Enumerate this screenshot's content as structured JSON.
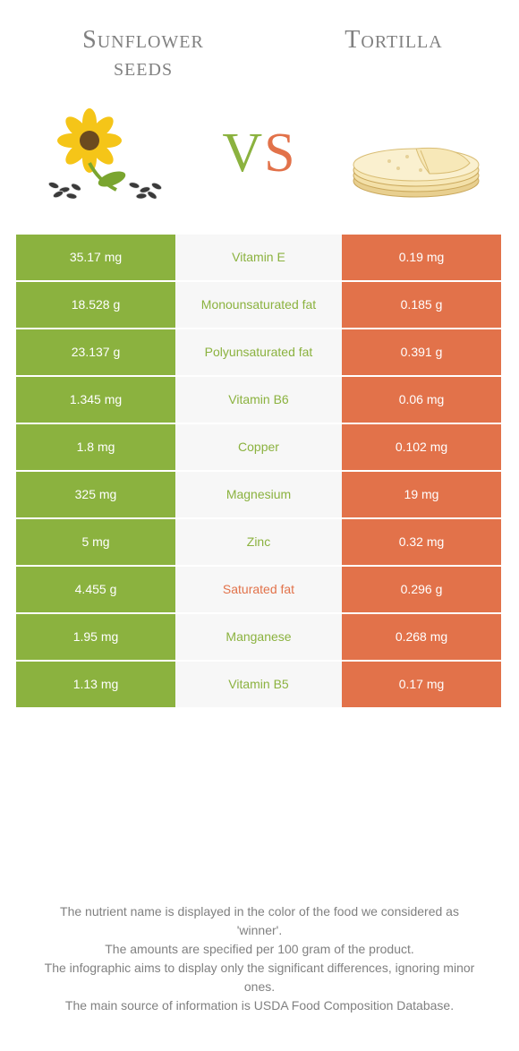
{
  "header": {
    "left_title_line1": "Sunflower",
    "left_title_line2": "seeds",
    "right_title": "Tortilla"
  },
  "vs": {
    "v": "V",
    "s": "S"
  },
  "colors": {
    "left": "#8bb23f",
    "right": "#e2724a",
    "mid_bg": "#f7f7f7",
    "text_gray": "#808080",
    "white": "#ffffff"
  },
  "table": {
    "rows": [
      {
        "left": "35.17 mg",
        "mid": "Vitamin E",
        "right": "0.19 mg",
        "mid_color": "#8bb23f"
      },
      {
        "left": "18.528 g",
        "mid": "Monounsaturated fat",
        "right": "0.185 g",
        "mid_color": "#8bb23f"
      },
      {
        "left": "23.137 g",
        "mid": "Polyunsaturated fat",
        "right": "0.391 g",
        "mid_color": "#8bb23f"
      },
      {
        "left": "1.345 mg",
        "mid": "Vitamin B6",
        "right": "0.06 mg",
        "mid_color": "#8bb23f"
      },
      {
        "left": "1.8 mg",
        "mid": "Copper",
        "right": "0.102 mg",
        "mid_color": "#8bb23f"
      },
      {
        "left": "325 mg",
        "mid": "Magnesium",
        "right": "19 mg",
        "mid_color": "#8bb23f"
      },
      {
        "left": "5 mg",
        "mid": "Zinc",
        "right": "0.32 mg",
        "mid_color": "#8bb23f"
      },
      {
        "left": "4.455 g",
        "mid": "Saturated fat",
        "right": "0.296 g",
        "mid_color": "#e2724a"
      },
      {
        "left": "1.95 mg",
        "mid": "Manganese",
        "right": "0.268 mg",
        "mid_color": "#8bb23f"
      },
      {
        "left": "1.13 mg",
        "mid": "Vitamin B5",
        "right": "0.17 mg",
        "mid_color": "#8bb23f"
      }
    ]
  },
  "footer": {
    "line1": "The nutrient name is displayed in the color of the food we considered as 'winner'.",
    "line2": "The amounts are specified per 100 gram of the product.",
    "line3": "The infographic aims to display only the significant differences, ignoring minor ones.",
    "line4": "The main source of information is USDA Food Composition Database."
  }
}
